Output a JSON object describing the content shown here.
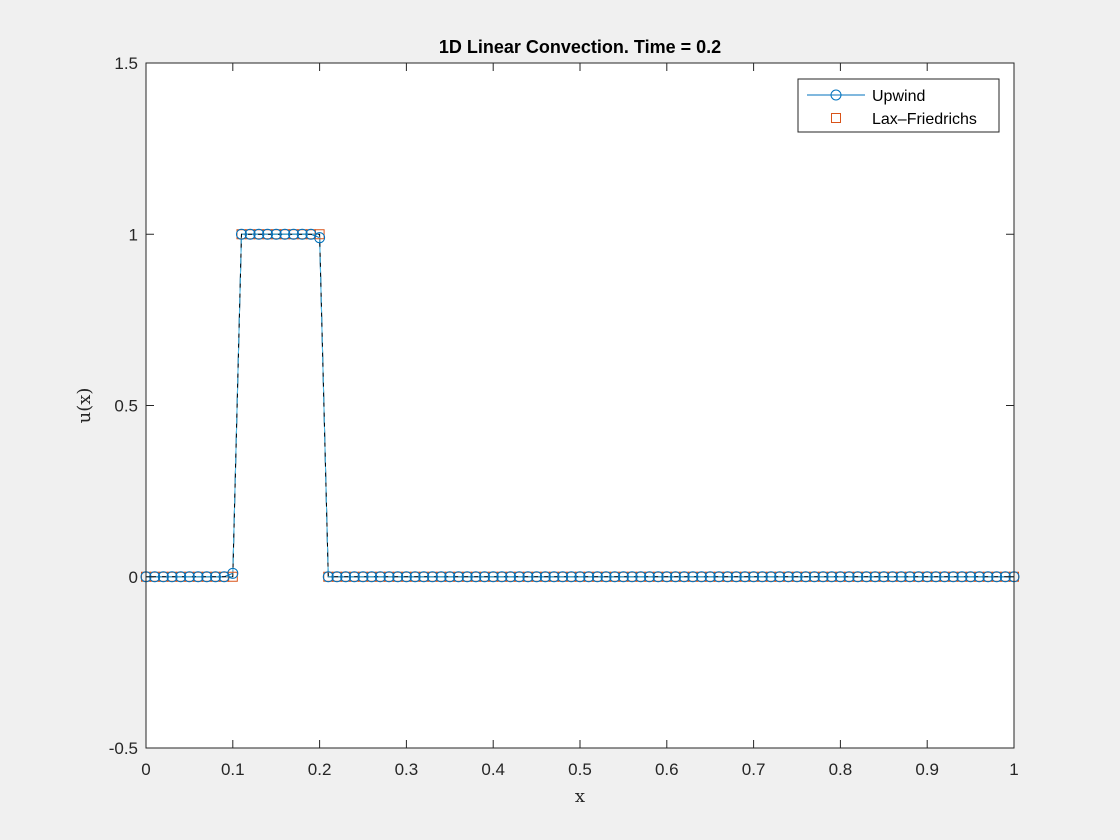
{
  "chart_data": {
    "type": "line",
    "title": "1D Linear Convection. Time = 0.2",
    "xlabel": "x",
    "ylabel": "u(x)",
    "xlim": [
      0,
      1
    ],
    "ylim": [
      -0.5,
      1.5
    ],
    "x_ticks": [
      "0",
      "0.1",
      "0.2",
      "0.3",
      "0.4",
      "0.5",
      "0.6",
      "0.7",
      "0.8",
      "0.9",
      "1"
    ],
    "y_ticks": [
      "-0.5",
      "0",
      "0.5",
      "1",
      "1.5"
    ],
    "grid": false,
    "legend_position": "top-right",
    "legend": [
      "Upwind",
      "Lax–Friedrichs"
    ],
    "x": [
      0,
      0.01,
      0.02,
      0.03,
      0.04,
      0.05,
      0.06,
      0.07,
      0.08,
      0.09,
      0.1,
      0.11,
      0.12,
      0.13,
      0.14,
      0.15,
      0.16,
      0.17,
      0.18,
      0.19,
      0.2,
      0.21,
      0.22,
      0.23,
      0.24,
      0.25,
      0.26,
      0.27,
      0.28,
      0.29,
      0.3,
      0.31,
      0.32,
      0.33,
      0.34,
      0.35,
      0.36,
      0.37,
      0.38,
      0.39,
      0.4,
      0.41,
      0.42,
      0.43,
      0.44,
      0.45,
      0.46,
      0.47,
      0.48,
      0.49,
      0.5,
      0.51,
      0.52,
      0.53,
      0.54,
      0.55,
      0.56,
      0.57,
      0.58,
      0.59,
      0.6,
      0.61,
      0.62,
      0.63,
      0.64,
      0.65,
      0.66,
      0.67,
      0.68,
      0.69,
      0.7,
      0.71,
      0.72,
      0.73,
      0.74,
      0.75,
      0.76,
      0.77,
      0.78,
      0.79,
      0.8,
      0.81,
      0.82,
      0.83,
      0.84,
      0.85,
      0.86,
      0.87,
      0.88,
      0.89,
      0.9,
      0.91,
      0.92,
      0.93,
      0.94,
      0.95,
      0.96,
      0.97,
      0.98,
      0.99,
      1
    ],
    "series": [
      {
        "name": "Upwind",
        "color": "#0072bd",
        "marker": "circle",
        "values": [
          0,
          0,
          0,
          0,
          0,
          0,
          0,
          0,
          0,
          0,
          0.01,
          1,
          1,
          1,
          1,
          1,
          1,
          1,
          1,
          1,
          0.99,
          0,
          0,
          0,
          0,
          0,
          0,
          0,
          0,
          0,
          0,
          0,
          0,
          0,
          0,
          0,
          0,
          0,
          0,
          0,
          0,
          0,
          0,
          0,
          0,
          0,
          0,
          0,
          0,
          0,
          0,
          0,
          0,
          0,
          0,
          0,
          0,
          0,
          0,
          0,
          0,
          0,
          0,
          0,
          0,
          0,
          0,
          0,
          0,
          0,
          0,
          0,
          0,
          0,
          0,
          0,
          0,
          0,
          0,
          0,
          0,
          0,
          0,
          0,
          0,
          0,
          0,
          0,
          0,
          0,
          0,
          0,
          0,
          0,
          0,
          0,
          0,
          0,
          0,
          0,
          0
        ]
      },
      {
        "name": "Lax–Friedrichs",
        "color": "#d95319",
        "marker": "square",
        "values": [
          0,
          0,
          0,
          0,
          0,
          0,
          0,
          0,
          0,
          0,
          0,
          1,
          1,
          1,
          1,
          1,
          1,
          1,
          1,
          1,
          1,
          0,
          0,
          0,
          0,
          0,
          0,
          0,
          0,
          0,
          0,
          0,
          0,
          0,
          0,
          0,
          0,
          0,
          0,
          0,
          0,
          0,
          0,
          0,
          0,
          0,
          0,
          0,
          0,
          0,
          0,
          0,
          0,
          0,
          0,
          0,
          0,
          0,
          0,
          0,
          0,
          0,
          0,
          0,
          0,
          0,
          0,
          0,
          0,
          0,
          0,
          0,
          0,
          0,
          0,
          0,
          0,
          0,
          0,
          0,
          0,
          0,
          0,
          0,
          0,
          0,
          0,
          0,
          0,
          0,
          0,
          0,
          0,
          0,
          0,
          0,
          0,
          0,
          0,
          0,
          0
        ]
      },
      {
        "color": "#000000",
        "marker": "none",
        "values": [
          0,
          0,
          0,
          0,
          0,
          0,
          0,
          0,
          0,
          0,
          0,
          1,
          1,
          1,
          1,
          1,
          1,
          1,
          1,
          1,
          1,
          0,
          0,
          0,
          0,
          0,
          0,
          0,
          0,
          0,
          0,
          0,
          0,
          0,
          0,
          0,
          0,
          0,
          0,
          0,
          0,
          0,
          0,
          0,
          0,
          0,
          0,
          0,
          0,
          0,
          0,
          0,
          0,
          0,
          0,
          0,
          0,
          0,
          0,
          0,
          0,
          0,
          0,
          0,
          0,
          0,
          0,
          0,
          0,
          0,
          0,
          0,
          0,
          0,
          0,
          0,
          0,
          0,
          0,
          0,
          0,
          0,
          0,
          0,
          0,
          0,
          0,
          0,
          0,
          0,
          0,
          0,
          0,
          0,
          0,
          0,
          0,
          0,
          0,
          0,
          0
        ]
      },
      {
        "color": "#4dbeee",
        "marker": "none",
        "dash": "dashed",
        "values": [
          0,
          0,
          0,
          0,
          0,
          0,
          0,
          0,
          0,
          0,
          0,
          1,
          1,
          1,
          1,
          1,
          1,
          1,
          1,
          1,
          1,
          0,
          0,
          0,
          0,
          0,
          0,
          0,
          0,
          0,
          0,
          0,
          0,
          0,
          0,
          0,
          0,
          0,
          0,
          0,
          0,
          0,
          0,
          0,
          0,
          0,
          0,
          0,
          0,
          0,
          0,
          0,
          0,
          0,
          0,
          0,
          0,
          0,
          0,
          0,
          0,
          0,
          0,
          0,
          0,
          0,
          0,
          0,
          0,
          0,
          0,
          0,
          0,
          0,
          0,
          0,
          0,
          0,
          0,
          0,
          0,
          0,
          0,
          0,
          0,
          0,
          0,
          0,
          0,
          0,
          0,
          0,
          0,
          0,
          0,
          0,
          0,
          0,
          0,
          0,
          0
        ]
      }
    ]
  }
}
